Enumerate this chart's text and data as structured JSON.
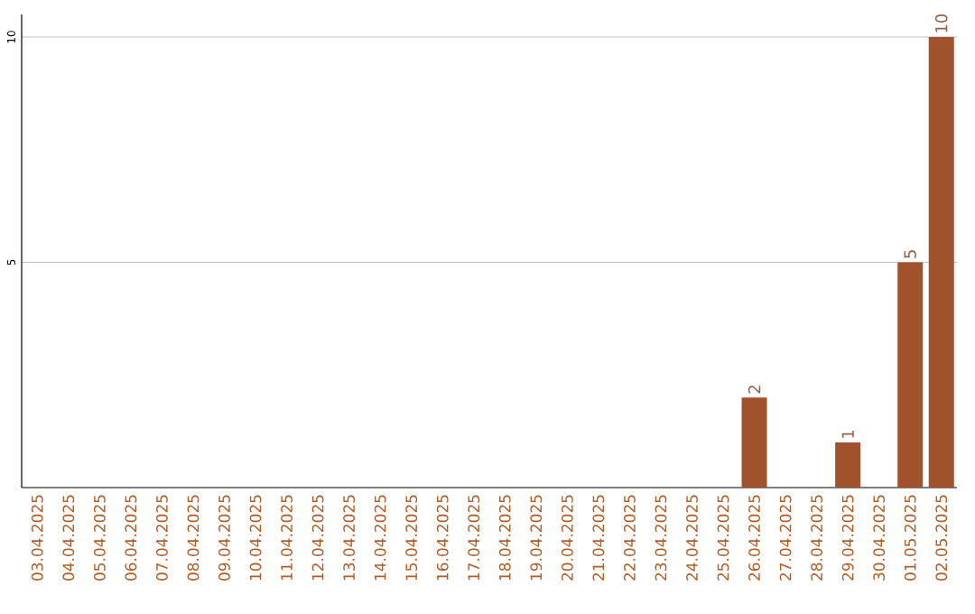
{
  "chart_data": {
    "type": "bar",
    "categories": [
      "03.04.2025",
      "04.04.2025",
      "05.04.2025",
      "06.04.2025",
      "07.04.2025",
      "08.04.2025",
      "09.04.2025",
      "10.04.2025",
      "11.04.2025",
      "12.04.2025",
      "13.04.2025",
      "14.04.2025",
      "15.04.2025",
      "16.04.2025",
      "17.04.2025",
      "18.04.2025",
      "19.04.2025",
      "20.04.2025",
      "21.04.2025",
      "22.04.2025",
      "23.04.2025",
      "24.04.2025",
      "25.04.2025",
      "26.04.2025",
      "27.04.2025",
      "28.04.2025",
      "29.04.2025",
      "30.04.2025",
      "01.05.2025",
      "02.05.2025"
    ],
    "values": [
      0,
      0,
      0,
      0,
      0,
      0,
      0,
      0,
      0,
      0,
      0,
      0,
      0,
      0,
      0,
      0,
      0,
      0,
      0,
      0,
      0,
      0,
      0,
      2,
      0,
      0,
      1,
      0,
      5,
      10
    ],
    "value_labels": [
      null,
      null,
      null,
      null,
      null,
      null,
      null,
      null,
      null,
      null,
      null,
      null,
      null,
      null,
      null,
      null,
      null,
      null,
      null,
      null,
      null,
      null,
      null,
      "2",
      null,
      null,
      "1",
      null,
      "5",
      "10"
    ],
    "color": "#a0522d",
    "ylim": [
      0,
      10.5
    ],
    "yticks": [
      5,
      10
    ],
    "grid": "y"
  }
}
